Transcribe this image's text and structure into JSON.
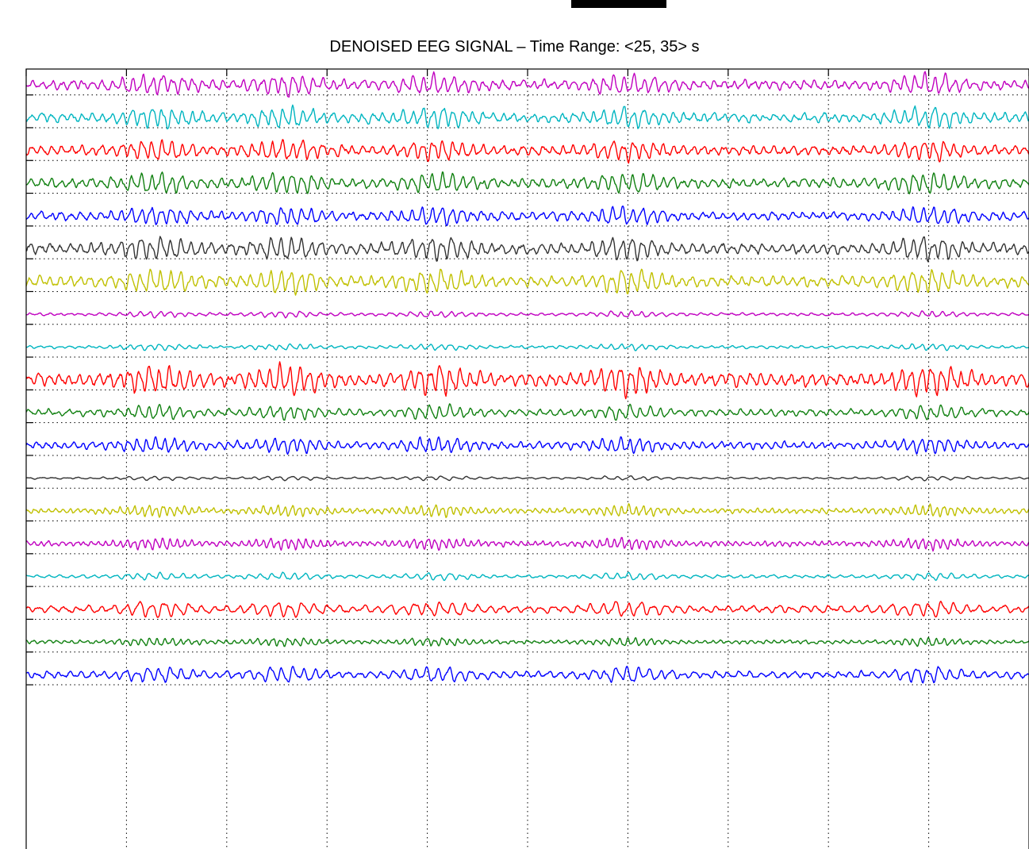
{
  "chart_data": {
    "type": "line",
    "title": "DENOISED EEG SIGNAL – Time Range: <25, 35> s",
    "xlabel": "",
    "ylabel": "",
    "xlim": [
      25,
      35
    ],
    "grid": true,
    "grid_style": "dotted",
    "channel_count": 19,
    "series": [
      {
        "color": "#c000c0",
        "amplitude": 0.4,
        "frequency_hz": 10
      },
      {
        "color": "#00b5c0",
        "amplitude": 0.4,
        "frequency_hz": 10
      },
      {
        "color": "#ff0000",
        "amplitude": 0.4,
        "frequency_hz": 10
      },
      {
        "color": "#108010",
        "amplitude": 0.4,
        "frequency_hz": 10
      },
      {
        "color": "#0000ff",
        "amplitude": 0.36,
        "frequency_hz": 10
      },
      {
        "color": "#333333",
        "amplitude": 0.45,
        "frequency_hz": 10
      },
      {
        "color": "#c0c000",
        "amplitude": 0.45,
        "frequency_hz": 10
      },
      {
        "color": "#c000c0",
        "amplitude": 0.12,
        "frequency_hz": 10
      },
      {
        "color": "#00b5c0",
        "amplitude": 0.12,
        "frequency_hz": 10
      },
      {
        "color": "#ff0000",
        "amplitude": 0.55,
        "frequency_hz": 10
      },
      {
        "color": "#108010",
        "amplitude": 0.28,
        "frequency_hz": 10
      },
      {
        "color": "#0000ff",
        "amplitude": 0.3,
        "frequency_hz": 11
      },
      {
        "color": "#333333",
        "amplitude": 0.08,
        "frequency_hz": 8
      },
      {
        "color": "#c0c000",
        "amplitude": 0.22,
        "frequency_hz": 14
      },
      {
        "color": "#c000c0",
        "amplitude": 0.22,
        "frequency_hz": 14
      },
      {
        "color": "#00b5c0",
        "amplitude": 0.14,
        "frequency_hz": 9
      },
      {
        "color": "#ff0000",
        "amplitude": 0.3,
        "frequency_hz": 8
      },
      {
        "color": "#108010",
        "amplitude": 0.16,
        "frequency_hz": 13
      },
      {
        "color": "#0000ff",
        "amplitude": 0.3,
        "frequency_hz": 9
      }
    ]
  }
}
